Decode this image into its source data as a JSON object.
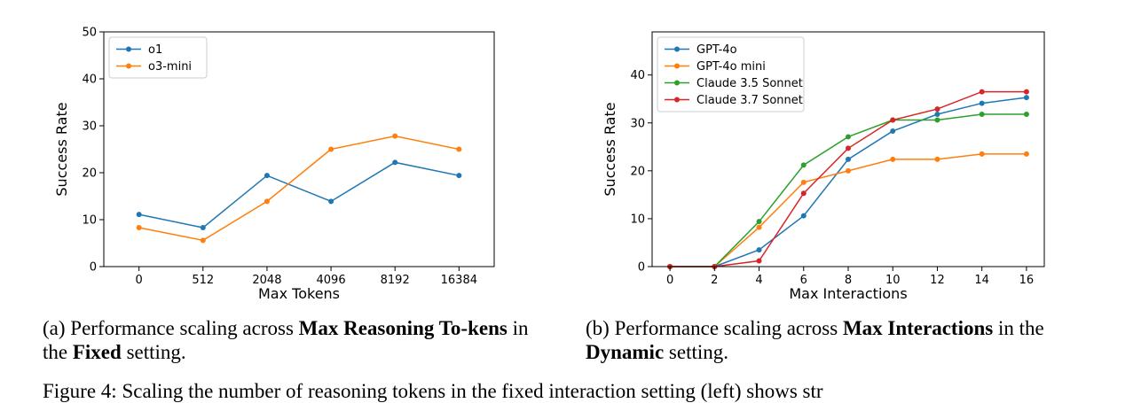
{
  "chart_data": [
    {
      "type": "line",
      "xlabel": "Max Tokens",
      "ylabel": "Success Rate",
      "categories": [
        "0",
        "512",
        "2048",
        "4096",
        "8192",
        "16384"
      ],
      "ylim": [
        0,
        50
      ],
      "yticks": [
        0,
        10,
        20,
        30,
        40,
        50
      ],
      "legend": "top-left",
      "grid": false,
      "series": [
        {
          "name": "o1",
          "color": "#1f77b4",
          "values": [
            11.1,
            8.3,
            19.4,
            13.9,
            22.2,
            19.4
          ]
        },
        {
          "name": "o3-mini",
          "color": "#ff7f0e",
          "values": [
            8.3,
            5.6,
            13.9,
            25.0,
            27.8,
            25.0
          ]
        }
      ]
    },
    {
      "type": "line",
      "xlabel": "Max Interactions",
      "ylabel": "Success Rate",
      "x": [
        0,
        2,
        4,
        6,
        8,
        10,
        12,
        14,
        16
      ],
      "xlim": [
        -0.8,
        16.8
      ],
      "ylim": [
        0,
        49
      ],
      "yticks": [
        0,
        10,
        20,
        30,
        40
      ],
      "legend": "top-left",
      "grid": false,
      "series": [
        {
          "name": "GPT-4o",
          "color": "#1f77b4",
          "values": [
            0,
            0,
            3.5,
            10.6,
            22.4,
            28.3,
            31.8,
            34.1,
            35.3
          ]
        },
        {
          "name": "GPT-4o mini",
          "color": "#ff7f0e",
          "values": [
            0,
            0,
            8.2,
            17.6,
            20.0,
            22.4,
            22.4,
            23.5,
            23.5
          ]
        },
        {
          "name": "Claude 3.5 Sonnet",
          "color": "#2ca02c",
          "values": [
            0,
            0,
            9.4,
            21.2,
            27.1,
            30.6,
            30.6,
            31.8,
            31.8
          ]
        },
        {
          "name": "Claude 3.7 Sonnet",
          "color": "#d62728",
          "values": [
            0,
            0,
            1.2,
            15.3,
            24.7,
            30.6,
            32.9,
            36.5,
            36.5
          ]
        }
      ]
    }
  ],
  "captions": {
    "left": {
      "prefix": "(a) Performance scaling across ",
      "bold1": "Max Reasoning To-kens",
      "middle": " in the ",
      "bold2": "Fixed",
      "suffix": " setting."
    },
    "right": {
      "prefix": "(b) Performance scaling across ",
      "bold1": "Max Interactions",
      "middle": " in the ",
      "bold2": "Dynamic",
      "suffix": " setting."
    }
  },
  "footer_text": "Figure 4: Scaling the number of reasoning tokens in the fixed interaction setting (left) shows str"
}
